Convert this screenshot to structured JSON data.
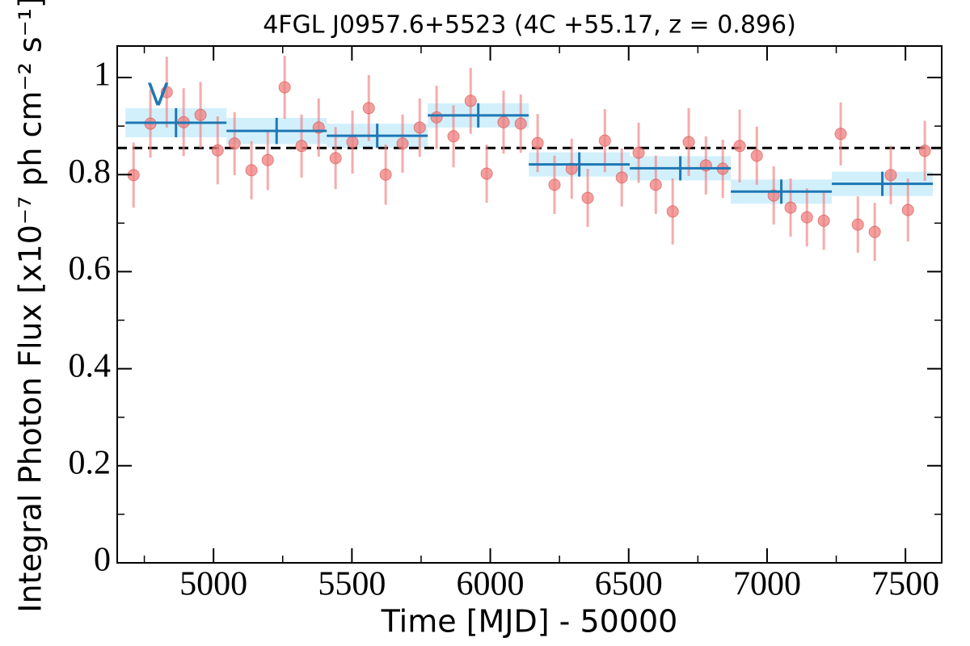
{
  "chart_data": {
    "type": "lightcurve",
    "title": "4FGL J0957.6+5523 (4C +55.17, z = 0.896)",
    "x_label": "Time [MJD] - 50000",
    "y_label": "Integral Photon Flux [x10⁻⁷ ph cm⁻² s⁻¹]",
    "xlim": [
      4652,
      7631
    ],
    "ylim": [
      0,
      1.065
    ],
    "xticks": [
      5000,
      5500,
      6000,
      6500,
      7000,
      7500
    ],
    "xminorticks": [
      4750,
      5250,
      5750,
      6250,
      6750,
      7250
    ],
    "yticks": [
      0,
      0.2,
      0.4,
      0.6,
      0.8,
      1
    ],
    "yminorticks": [
      0.1,
      0.3,
      0.5,
      0.7,
      0.9
    ],
    "series": [
      {
        "color": "#f08080",
        "x": [
          4711,
          4772,
          4831,
          4892,
          4953,
          5015,
          5076,
          5137,
          5196,
          5257,
          5318,
          5380,
          5441,
          5502,
          5561,
          5622,
          5683,
          5745,
          5806,
          5867,
          5929,
          5987,
          6048,
          6110,
          6171,
          6232,
          6294,
          6352,
          6414,
          6475,
          6536,
          6598,
          6659,
          6717,
          6779,
          6840,
          6901,
          6963,
          7024,
          7085,
          7144,
          7205,
          7266,
          7328,
          7389,
          7447,
          7509,
          7570
        ],
        "values": [
          0.799,
          0.905,
          0.97,
          0.908,
          0.923,
          0.85,
          0.864,
          0.809,
          0.83,
          0.98,
          0.859,
          0.897,
          0.834,
          0.867,
          0.937,
          0.8,
          0.864,
          0.897,
          0.918,
          0.879,
          0.952,
          0.802,
          0.908,
          0.905,
          0.865,
          0.779,
          0.812,
          0.752,
          0.87,
          0.794,
          0.845,
          0.779,
          0.724,
          0.867,
          0.819,
          0.812,
          0.859,
          0.839,
          0.757,
          0.732,
          0.712,
          0.705,
          0.884,
          0.697,
          0.682,
          0.799,
          0.727,
          0.849
        ],
        "errors": [
          0.067,
          0.07,
          0.073,
          0.07,
          0.068,
          0.07,
          0.065,
          0.06,
          0.062,
          0.065,
          0.065,
          0.06,
          0.064,
          0.065,
          0.068,
          0.062,
          0.06,
          0.06,
          0.065,
          0.064,
          0.068,
          0.06,
          0.065,
          0.06,
          0.06,
          0.06,
          0.062,
          0.06,
          0.065,
          0.06,
          0.062,
          0.06,
          0.068,
          0.07,
          0.06,
          0.06,
          0.075,
          0.06,
          0.06,
          0.06,
          0.06,
          0.06,
          0.065,
          0.058,
          0.06,
          0.06,
          0.065,
          0.062
        ]
      },
      {
        "color": "#1f77b4",
        "band_color": "#cdeefc",
        "x_start": [
          4682,
          5047,
          5409,
          5774,
          6139,
          6504,
          6869,
          7234
        ],
        "x_end": [
          5047,
          5409,
          5774,
          6139,
          6504,
          6869,
          7234,
          7599
        ],
        "values": [
          0.907,
          0.89,
          0.88,
          0.922,
          0.821,
          0.813,
          0.765,
          0.781
        ],
        "errors": [
          0.03,
          0.027,
          0.025,
          0.025,
          0.025,
          0.025,
          0.025,
          0.025
        ]
      }
    ],
    "hline": {
      "value": 0.855,
      "color": "#000000"
    },
    "annotation": {
      "text": "V",
      "x": 4800,
      "y": 0.96,
      "color": "#1f77b4"
    }
  }
}
